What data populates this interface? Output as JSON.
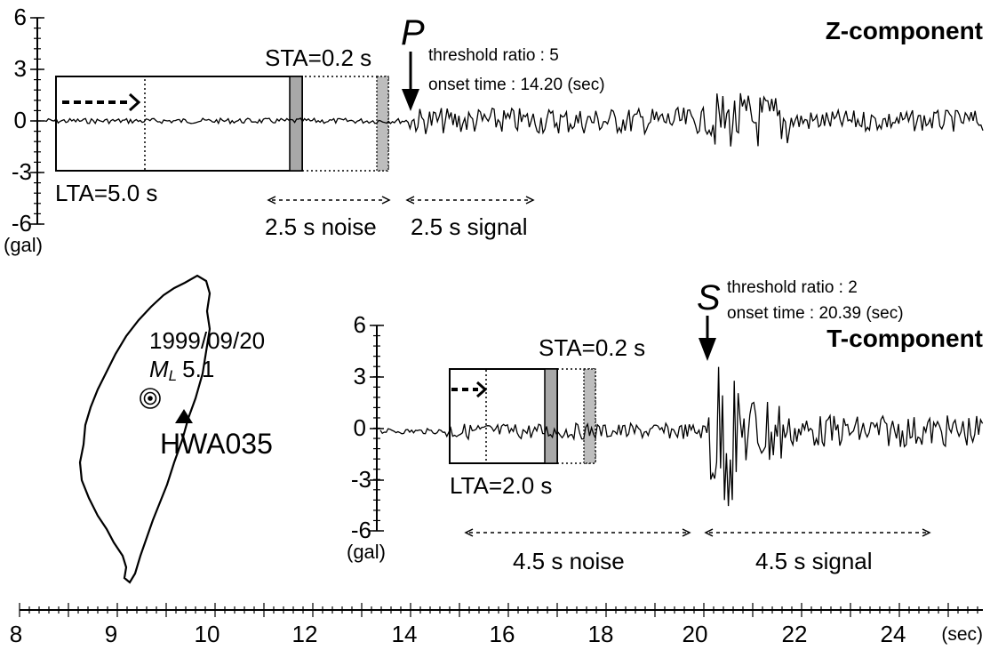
{
  "z_panel": {
    "title": "Z-component",
    "phase": "P",
    "threshold": "threshold ratio : 5",
    "onset": "onset time : 14.20 (sec)",
    "sta": "STA=0.2 s",
    "lta": "LTA=5.0 s",
    "noise": "2.5 s noise",
    "signal": "2.5 s signal",
    "unit": "(gal)",
    "y_ticks": [
      "6",
      "3",
      "0",
      "-3",
      "-6"
    ]
  },
  "t_panel": {
    "title": "T-component",
    "phase": "S",
    "threshold": "threshold ratio : 2",
    "onset": "onset time : 20.39 (sec)",
    "sta": "STA=0.2 s",
    "lta": "LTA=2.0 s",
    "noise": "4.5 s noise",
    "signal": "4.5 s signal",
    "unit": "(gal)",
    "y_ticks": [
      "6",
      "3",
      "0",
      "-3",
      "-6"
    ]
  },
  "map": {
    "date": "1999/09/20",
    "magnitude_symbol": "M",
    "magnitude_sub": "L",
    "magnitude_value": "5.1",
    "station": "HWA035",
    "epicenter_icon": "bullseye-icon",
    "station_icon": "triangle-icon"
  },
  "time_axis": {
    "ticks": [
      "8",
      "9",
      "10",
      "12",
      "14",
      "16",
      "18",
      "20",
      "22",
      "24"
    ],
    "unit": "(sec)"
  },
  "colors": {
    "trace": "#000000",
    "window_fill": "#a8a8a8",
    "background": "#ffffff"
  }
}
